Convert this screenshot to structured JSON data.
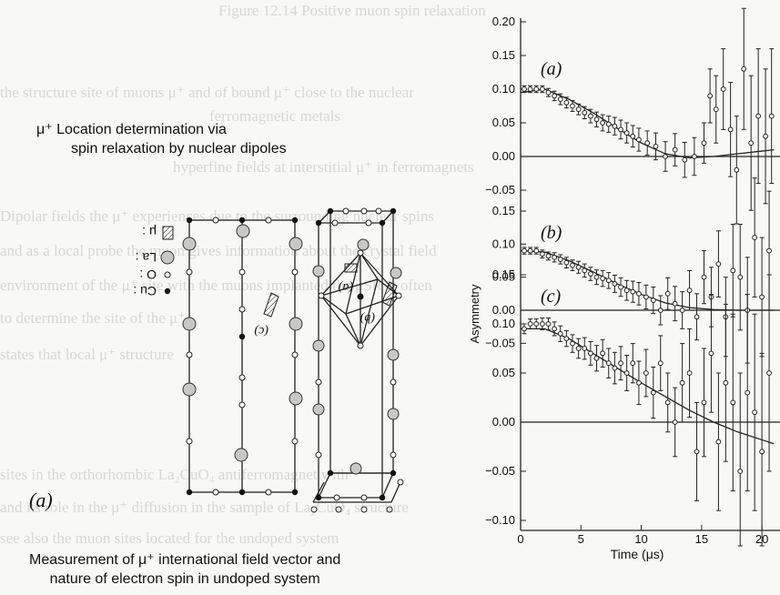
{
  "background_text": [
    "Figure 12.14 Positive muon spin relaxation",
    "the structure site of muons μ⁺ and of bound μ⁺ close to the nuclear",
    "ferromagnetic metals",
    "hyperfine fields at interstitial μ⁺ in ferromagnets",
    "Dipolar fields the μ⁺ experiences due to the surrounding nuclear spins",
    "and as a local probe the muon gives information about the crystal field",
    "environment of the μ⁺ site with the muons implanted the μSR is often",
    "to determine the site of the μ⁺",
    "states that local μ⁺ structure",
    "sites in the orthorhombic La₂CuO₄ antiferromagnet with",
    "and its role in the μ⁺ diffusion in the sample of La₂CuO₄ structure",
    "see also the muon sites located for the undoped system"
  ],
  "notes": {
    "top_line1": "μ⁺ Location determination via",
    "top_line2": "spin relaxation by nuclear dipoles",
    "bottom_line1": "Measurement of μ⁺ international field vector and",
    "bottom_line2": "nature of electron spin in undoped system"
  },
  "figure_left": {
    "panel_label": "(a)",
    "site_labels": [
      "(c)",
      "(a)",
      "(b)"
    ],
    "legend": [
      {
        "symbol": "μ-site",
        "label": "μ :"
      },
      {
        "symbol": "gray-circle",
        "label": "La :"
      },
      {
        "symbol": "open-circle",
        "label": "O :"
      },
      {
        "symbol": "black-dot",
        "label": "Cu :"
      }
    ]
  },
  "chart_data": {
    "type": "scatter",
    "xlabel": "Time (μs)",
    "ylabel": "Asymmetry",
    "xlim": [
      0,
      21
    ],
    "xticks": [
      0,
      5,
      10,
      15,
      20
    ],
    "panels": [
      {
        "label": "(a)",
        "ylim": [
          -0.05,
          0.2
        ],
        "yticks": [
          "0.20",
          "0.15",
          "0.10",
          "0.05",
          "0.00",
          "−0.05"
        ],
        "x": [
          0.3,
          0.8,
          1.3,
          1.8,
          2.3,
          2.8,
          3.3,
          3.8,
          4.3,
          4.8,
          5.3,
          5.8,
          6.3,
          6.8,
          7.3,
          7.8,
          8.3,
          8.8,
          9.3,
          9.8,
          10.5,
          11.2,
          12,
          12.8,
          13.6,
          14.4,
          15.2,
          15.7,
          16.2,
          16.8,
          17.4,
          17.9,
          18.5,
          19.1,
          19.7,
          20.3,
          20.8
        ],
        "y": [
          0.1,
          0.1,
          0.1,
          0.1,
          0.095,
          0.09,
          0.085,
          0.08,
          0.075,
          0.07,
          0.065,
          0.06,
          0.055,
          0.05,
          0.048,
          0.045,
          0.04,
          0.035,
          0.03,
          0.025,
          0.02,
          0.015,
          0.0,
          0.01,
          -0.005,
          0.0,
          0.02,
          0.09,
          0.07,
          0.1,
          0.04,
          -0.02,
          0.13,
          0.02,
          0.06,
          0.03,
          0.06
        ],
        "err": [
          0.005,
          0.005,
          0.005,
          0.005,
          0.006,
          0.007,
          0.008,
          0.008,
          0.008,
          0.008,
          0.009,
          0.01,
          0.011,
          0.012,
          0.012,
          0.013,
          0.014,
          0.015,
          0.016,
          0.017,
          0.018,
          0.02,
          0.022,
          0.024,
          0.026,
          0.028,
          0.03,
          0.04,
          0.05,
          0.06,
          0.07,
          0.08,
          0.09,
          0.1,
          0.1,
          0.1,
          0.1
        ],
        "fit_x": [
          0,
          2,
          4,
          6,
          8,
          10,
          12,
          14,
          16,
          18,
          20,
          21
        ],
        "fit_y": [
          0.095,
          0.1,
          0.085,
          0.065,
          0.042,
          0.02,
          0.004,
          -0.002,
          0.0,
          0.004,
          0.008,
          0.01
        ]
      },
      {
        "label": "(b)",
        "ylim": [
          -0.05,
          0.15
        ],
        "yticks": [
          "0.15",
          "0.10",
          "0.05",
          "0.00",
          "−0.05"
        ],
        "x": [
          0.3,
          0.8,
          1.3,
          1.8,
          2.3,
          2.8,
          3.3,
          3.8,
          4.3,
          4.8,
          5.3,
          5.8,
          6.3,
          6.8,
          7.3,
          7.8,
          8.3,
          8.8,
          9.3,
          9.8,
          10.4,
          11,
          11.6,
          12.2,
          12.8,
          13.4,
          14,
          14.6,
          15.2,
          15.8,
          16.4,
          17,
          17.6,
          18.2,
          18.8,
          19.4,
          20,
          20.6
        ],
        "y": [
          0.09,
          0.09,
          0.09,
          0.085,
          0.082,
          0.08,
          0.077,
          0.072,
          0.068,
          0.065,
          0.06,
          0.055,
          0.05,
          0.048,
          0.045,
          0.04,
          0.035,
          0.03,
          0.028,
          0.025,
          0.02,
          0.015,
          0.0,
          0.025,
          0.01,
          0.0,
          0.03,
          -0.01,
          0.05,
          0.02,
          0.07,
          -0.01,
          0.06,
          0.05,
          0.0,
          0.11,
          0.02,
          0.09
        ],
        "err": [
          0.005,
          0.005,
          0.005,
          0.006,
          0.006,
          0.007,
          0.007,
          0.008,
          0.008,
          0.009,
          0.01,
          0.01,
          0.011,
          0.012,
          0.012,
          0.013,
          0.014,
          0.015,
          0.016,
          0.017,
          0.018,
          0.02,
          0.022,
          0.024,
          0.026,
          0.028,
          0.03,
          0.035,
          0.04,
          0.045,
          0.05,
          0.06,
          0.07,
          0.08,
          0.08,
          0.09,
          0.09,
          0.09
        ],
        "fit_x": [
          0,
          2,
          4,
          6,
          8,
          10,
          12,
          14,
          16,
          18,
          20,
          21
        ],
        "fit_y": [
          0.09,
          0.088,
          0.075,
          0.058,
          0.04,
          0.024,
          0.011,
          0.004,
          0.001,
          0.0,
          0.0,
          0.0
        ]
      },
      {
        "label": "(c)",
        "ylim": [
          -0.1,
          0.15
        ],
        "yticks": [
          "0.15",
          "0.10",
          "0.05",
          "0.00",
          "−0.05",
          "−0.10"
        ],
        "x": [
          0.3,
          0.8,
          1.3,
          1.8,
          2.3,
          2.8,
          3.3,
          3.8,
          4.3,
          4.8,
          5.3,
          5.8,
          6.3,
          6.8,
          7.3,
          7.8,
          8.3,
          8.8,
          9.3,
          9.8,
          10.4,
          11,
          11.6,
          12.2,
          12.8,
          13.4,
          14,
          14.6,
          15.2,
          15.8,
          16.4,
          17,
          17.6,
          18.2,
          18.8,
          19.4,
          20,
          20.6
        ],
        "y": [
          0.095,
          0.1,
          0.1,
          0.1,
          0.1,
          0.095,
          0.09,
          0.085,
          0.08,
          0.075,
          0.075,
          0.07,
          0.065,
          0.07,
          0.06,
          0.055,
          0.06,
          0.05,
          0.06,
          0.04,
          0.05,
          0.03,
          0.06,
          0.02,
          0.0,
          0.04,
          0.05,
          -0.03,
          0.02,
          0.07,
          -0.02,
          0.04,
          0.02,
          -0.05,
          0.03,
          0.01,
          -0.03,
          0.05
        ],
        "err": [
          0.005,
          0.005,
          0.005,
          0.006,
          0.006,
          0.007,
          0.008,
          0.008,
          0.009,
          0.01,
          0.011,
          0.012,
          0.013,
          0.014,
          0.015,
          0.016,
          0.017,
          0.018,
          0.02,
          0.022,
          0.024,
          0.026,
          0.028,
          0.03,
          0.035,
          0.04,
          0.045,
          0.05,
          0.055,
          0.06,
          0.07,
          0.08,
          0.09,
          0.1,
          0.1,
          0.1,
          0.1,
          0.1
        ],
        "fit_x": [
          0,
          2,
          4,
          6,
          8,
          10,
          12,
          14,
          16,
          18,
          20,
          21
        ],
        "fit_y": [
          0.095,
          0.095,
          0.085,
          0.07,
          0.055,
          0.04,
          0.026,
          0.012,
          0.0,
          -0.01,
          -0.018,
          -0.022
        ]
      }
    ]
  }
}
